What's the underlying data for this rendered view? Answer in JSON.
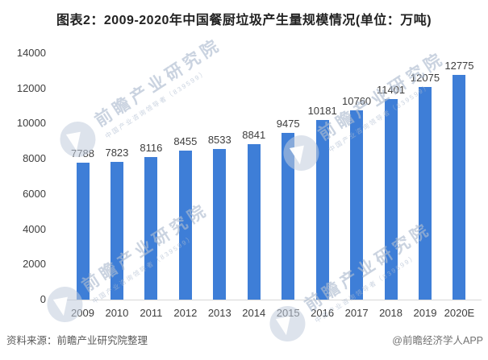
{
  "title": "图表2：2009-2020年中国餐厨垃圾产生量规模情况(单位：万吨)",
  "chart_data": {
    "type": "bar",
    "categories": [
      "2009",
      "2010",
      "2011",
      "2012",
      "2013",
      "2014",
      "2015",
      "2016",
      "2017",
      "2018",
      "2019",
      "2020E"
    ],
    "values": [
      7788,
      7823,
      8116,
      8455,
      8533,
      8841,
      9475,
      10181,
      10760,
      11401,
      12075,
      12775
    ],
    "title": "图表2：2009-2020年中国餐厨垃圾产生量规模情况(单位：万吨)",
    "xlabel": "",
    "ylabel": "",
    "ylim": [
      0,
      14000
    ],
    "ytick_step": 2000,
    "bar_color": "#3E7ED7",
    "grid": false,
    "data_labels": true,
    "legend": false
  },
  "watermark": {
    "text": "前瞻产业研究院",
    "subtext": "中国产业咨询领导者（839599）",
    "logo": "flag-circle-icon"
  },
  "footer": {
    "source": "资料来源：前瞻产业研究院整理",
    "credit": "@前瞻经济学人APP"
  }
}
